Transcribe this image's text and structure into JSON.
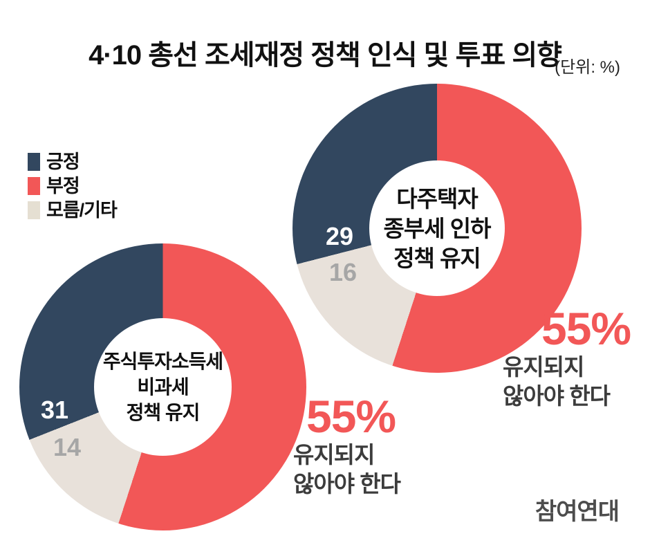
{
  "title": "4·10 총선 조세재정 정책 인식 및 투표 의향",
  "unit_note": "(단위: %)",
  "source_logo": "참여연대",
  "legend": {
    "items": [
      {
        "label": "긍정",
        "color": "#32475F"
      },
      {
        "label": "부정",
        "color": "#F25757"
      },
      {
        "label": "모름/기타",
        "color": "#E5DFD2"
      }
    ]
  },
  "chart_data": [
    {
      "type": "pie",
      "style": "donut",
      "title": "다주택자 종부세 인하 정책 유지",
      "center_lines": [
        "다주택자",
        "종부세 인하",
        "정책 유지"
      ],
      "start_angle_deg": 0,
      "direction": "clockwise",
      "segments": [
        {
          "name": "부정",
          "value": 55,
          "color": "#F25757"
        },
        {
          "name": "모름/기타",
          "value": 16,
          "color": "#E8E1DA",
          "label": "16",
          "label_color": "#A6A6A6"
        },
        {
          "name": "긍정",
          "value": 29,
          "color": "#32475F",
          "label": "29",
          "label_color": "#FFFFFF"
        }
      ],
      "callout": {
        "pct": "55%",
        "pct_color": "#F25757",
        "lines": [
          "유지되지",
          "않아야 한다"
        ]
      }
    },
    {
      "type": "pie",
      "style": "donut",
      "title": "주식투자소득세 비과세 정책 유지",
      "center_lines": [
        "주식투자소득세",
        "비과세",
        "정책 유지"
      ],
      "start_angle_deg": 0,
      "direction": "clockwise",
      "segments": [
        {
          "name": "부정",
          "value": 55,
          "color": "#F25757"
        },
        {
          "name": "모름/기타",
          "value": 14,
          "color": "#E8E1DA",
          "label": "14",
          "label_color": "#A6A6A6"
        },
        {
          "name": "긍정",
          "value": 31,
          "color": "#32475F",
          "label": "31",
          "label_color": "#FFFFFF"
        }
      ],
      "callout": {
        "pct": "55%",
        "pct_color": "#F25757",
        "lines": [
          "유지되지",
          "않아야 한다"
        ]
      }
    }
  ]
}
